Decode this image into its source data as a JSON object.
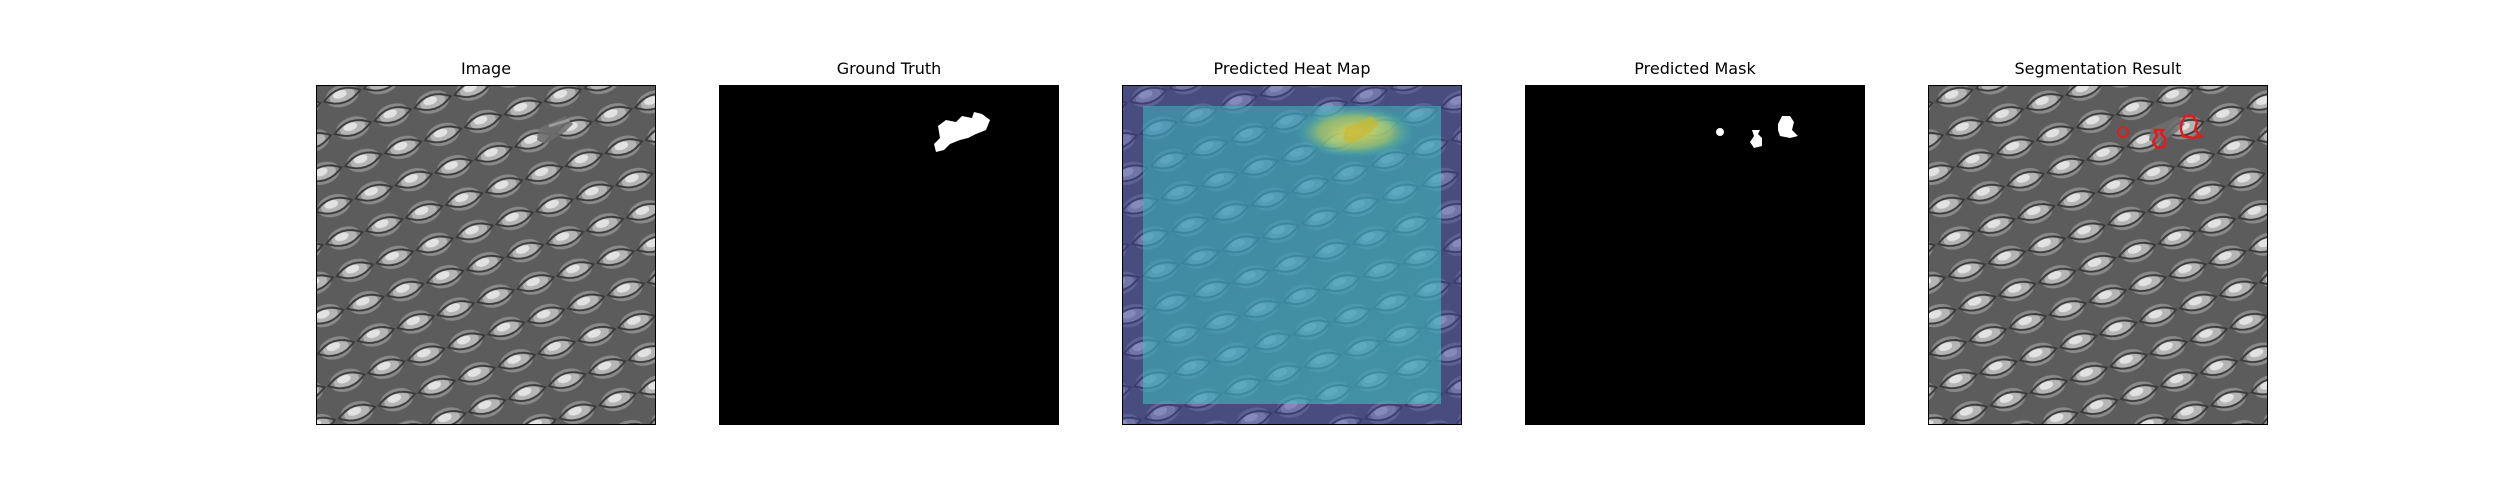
{
  "panels": [
    {
      "title": "Image",
      "icon": "texture-image"
    },
    {
      "title": "Ground Truth",
      "icon": "binary-mask"
    },
    {
      "title": "Predicted Heat Map",
      "icon": "heatmap-overlay"
    },
    {
      "title": "Predicted Mask",
      "icon": "binary-mask"
    },
    {
      "title": "Segmentation Result",
      "icon": "contour-overlay"
    }
  ],
  "colors": {
    "background": "#ffffff",
    "mask_background": "#000000",
    "mask_foreground": "#ffffff",
    "heatmap_low": "#3b3f9a",
    "heatmap_mid": "#39c7c0",
    "heatmap_high": "#f4e04d",
    "contour": "#e31a1c"
  }
}
